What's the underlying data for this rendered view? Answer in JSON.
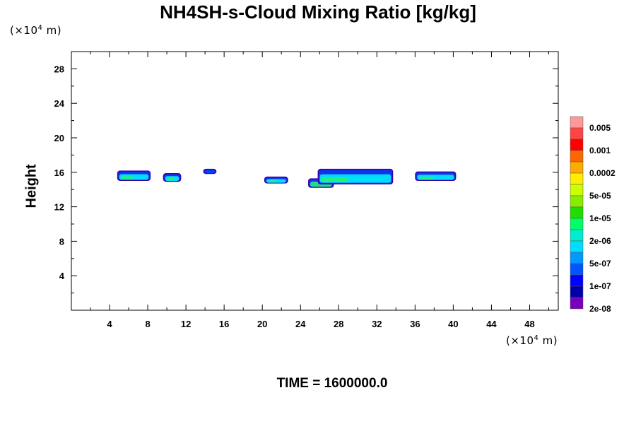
{
  "title": "NH4SH-s-Cloud Mixing Ratio [kg/kg]",
  "y_unit": {
    "prefix": "(×10",
    "exp": "4",
    "suffix": " m)"
  },
  "x_unit": {
    "prefix": "(×10",
    "exp": "4",
    "suffix": " m)"
  },
  "ylabel": "Height",
  "time_label": "TIME = 1600000.0",
  "chart_data": {
    "type": "heatmap",
    "title": "NH4SH-s-Cloud Mixing Ratio [kg/kg]",
    "xlabel": "",
    "ylabel": "Height",
    "xlim": [
      0,
      51
    ],
    "ylim": [
      0,
      30
    ],
    "x_ticks": [
      4,
      8,
      12,
      16,
      20,
      24,
      28,
      32,
      36,
      40,
      44,
      48
    ],
    "y_ticks": [
      4,
      8,
      12,
      16,
      20,
      24,
      28
    ],
    "legend_levels": [
      "0.005",
      "0.001",
      "0.0002",
      "5e-05",
      "1e-05",
      "2e-06",
      "5e-07",
      "1e-07",
      "2e-08"
    ],
    "legend_colors": [
      "#ff9999",
      "#ff4444",
      "#ff0000",
      "#ff6600",
      "#ffaa00",
      "#ffee00",
      "#ccff00",
      "#88ee00",
      "#22dd00",
      "#00ff66",
      "#00eecc",
      "#00ddff",
      "#0099ff",
      "#0055ff",
      "#0000ff",
      "#0000aa",
      "#7700bb"
    ],
    "cloud_patches": [
      {
        "x": [
          4.8,
          8.3
        ],
        "y": [
          15.0,
          16.2
        ],
        "dominant": "5e-07"
      },
      {
        "x": [
          9.6,
          11.5
        ],
        "y": [
          14.9,
          15.9
        ],
        "dominant": "5e-07"
      },
      {
        "x": [
          13.8,
          15.2
        ],
        "y": [
          15.8,
          16.4
        ],
        "dominant": "1e-07"
      },
      {
        "x": [
          20.2,
          22.7
        ],
        "y": [
          14.7,
          15.5
        ],
        "dominant": "5e-07"
      },
      {
        "x": [
          24.8,
          27.5
        ],
        "y": [
          14.2,
          15.3
        ],
        "dominant": "2e-06"
      },
      {
        "x": [
          25.8,
          33.7
        ],
        "y": [
          14.6,
          16.4
        ],
        "dominant": "5e-07"
      },
      {
        "x": [
          36.0,
          40.3
        ],
        "y": [
          15.0,
          16.1
        ],
        "dominant": "5e-07"
      }
    ]
  }
}
